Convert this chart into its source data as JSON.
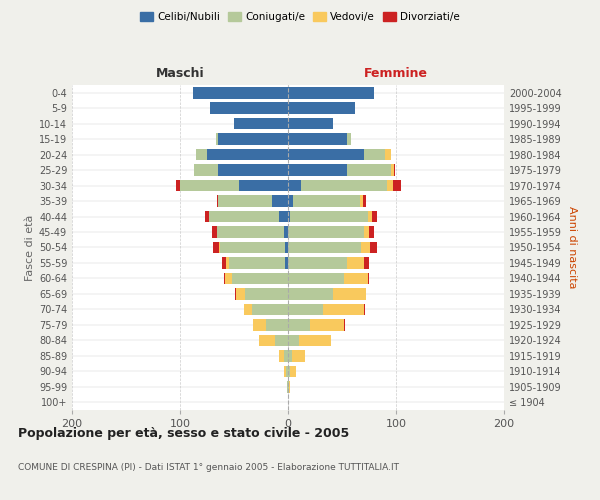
{
  "age_groups": [
    "100+",
    "95-99",
    "90-94",
    "85-89",
    "80-84",
    "75-79",
    "70-74",
    "65-69",
    "60-64",
    "55-59",
    "50-54",
    "45-49",
    "40-44",
    "35-39",
    "30-34",
    "25-29",
    "20-24",
    "15-19",
    "10-14",
    "5-9",
    "0-4"
  ],
  "birth_years": [
    "≤ 1904",
    "1905-1909",
    "1910-1914",
    "1915-1919",
    "1920-1924",
    "1925-1929",
    "1930-1934",
    "1935-1939",
    "1940-1944",
    "1945-1949",
    "1950-1954",
    "1955-1959",
    "1960-1964",
    "1965-1969",
    "1970-1974",
    "1975-1979",
    "1980-1984",
    "1985-1989",
    "1990-1994",
    "1995-1999",
    "2000-2004"
  ],
  "maschi": {
    "celibi": [
      0,
      0,
      0,
      0,
      0,
      0,
      0,
      0,
      0,
      3,
      3,
      4,
      8,
      15,
      45,
      65,
      75,
      65,
      50,
      72,
      88
    ],
    "coniugati": [
      0,
      1,
      2,
      4,
      12,
      20,
      33,
      40,
      52,
      52,
      60,
      62,
      65,
      50,
      55,
      22,
      10,
      2,
      0,
      0,
      0
    ],
    "vedovi": [
      0,
      0,
      2,
      4,
      15,
      12,
      8,
      8,
      6,
      2,
      1,
      0,
      0,
      0,
      0,
      0,
      0,
      0,
      0,
      0,
      0
    ],
    "divorziati": [
      0,
      0,
      0,
      0,
      0,
      0,
      0,
      1,
      1,
      4,
      5,
      4,
      4,
      1,
      4,
      0,
      0,
      0,
      0,
      0,
      0
    ]
  },
  "femmine": {
    "nubili": [
      0,
      0,
      0,
      0,
      0,
      0,
      0,
      0,
      0,
      0,
      0,
      0,
      2,
      5,
      12,
      55,
      70,
      55,
      42,
      62,
      80
    ],
    "coniugate": [
      0,
      1,
      2,
      4,
      10,
      20,
      32,
      42,
      52,
      55,
      68,
      70,
      72,
      62,
      80,
      40,
      20,
      3,
      0,
      0,
      0
    ],
    "vedove": [
      0,
      1,
      5,
      12,
      30,
      32,
      38,
      30,
      22,
      15,
      8,
      5,
      4,
      2,
      5,
      3,
      5,
      0,
      0,
      0,
      0
    ],
    "divorziate": [
      0,
      0,
      0,
      0,
      0,
      1,
      1,
      0,
      1,
      5,
      6,
      5,
      4,
      3,
      8,
      1,
      0,
      0,
      0,
      0,
      0
    ]
  },
  "colors": {
    "celibi": "#3a6ea5",
    "coniugati": "#b5c99a",
    "vedovi": "#f9c95d",
    "divorziati": "#cc2222"
  },
  "title": "Popolazione per età, sesso e stato civile - 2005",
  "subtitle": "COMUNE DI CRESPINA (PI) - Dati ISTAT 1° gennaio 2005 - Elaborazione TUTTITALIA.IT",
  "xlabel_left": "Maschi",
  "xlabel_right": "Femmine",
  "ylabel_left": "Fasce di età",
  "ylabel_right": "Anni di nascita",
  "xlim": 200,
  "bg_color": "#f0f0eb",
  "bar_bg": "#ffffff",
  "legend": [
    "Celibi/Nubili",
    "Coniugati/e",
    "Vedovi/e",
    "Divorziati/e"
  ]
}
